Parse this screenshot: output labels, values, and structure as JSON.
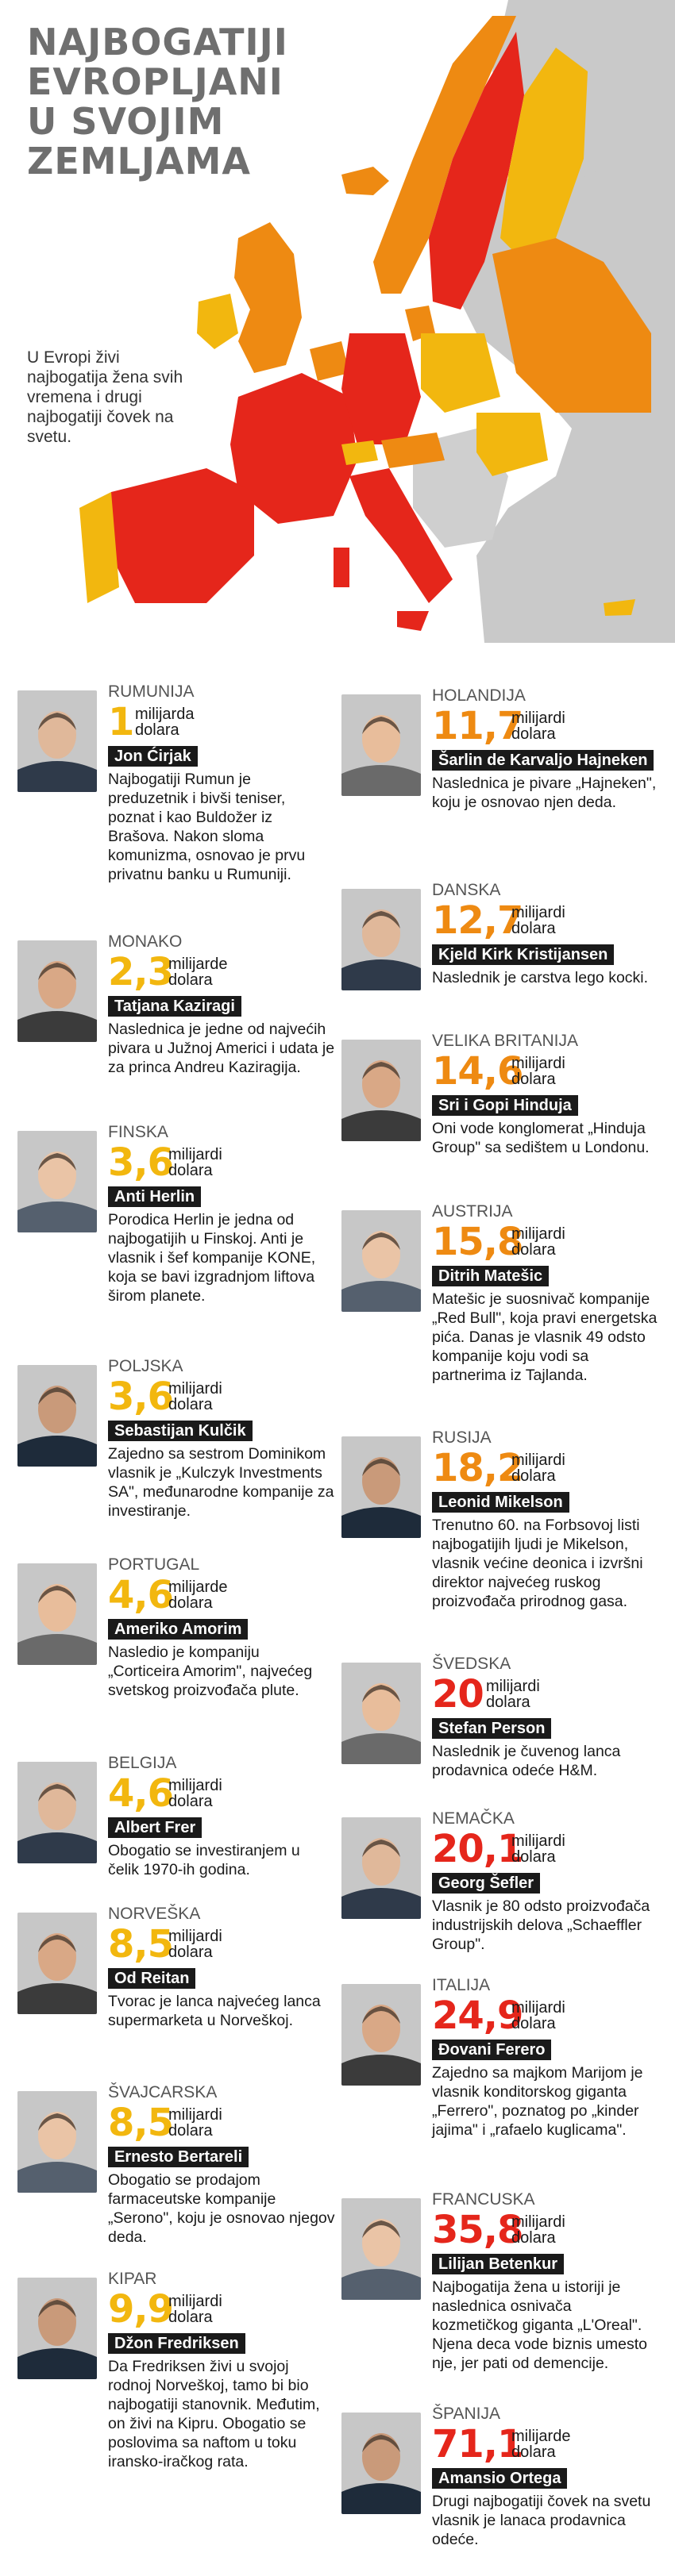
{
  "header": {
    "title_lines": [
      "NAJBOGATIJI",
      "EVROPLJANI",
      "U SVOJIM",
      "ZEMLJAMA"
    ],
    "intro": "U Evropi živi najbogatija žena svih vremena i drugi najbogatiji čovek na svetu."
  },
  "colors": {
    "tier_low": "#f2b70f",
    "tier_mid": "#ee8a12",
    "tier_high": "#e5261b",
    "map_gray": "#c9c9c9",
    "text_dark": "#1a1a1a"
  },
  "entries": [
    {
      "country": "RUMUNIJA",
      "amount": "1",
      "unit": "milijarda dolara",
      "name": "Jon Ćirjak",
      "desc": "Najbogatiji Rumun je preduzetnik i bivši teniser, poznat i kao Buldožer iz Brašova. Nakon sloma komunizma, osnovao je prvu privatnu banku u Rumuniji.",
      "tier": "gold"
    },
    {
      "country": "MONAKO",
      "amount": "2,3",
      "unit": "milijarde dolara",
      "name": "Tatjana Kaziragi",
      "desc": "Naslednica je jedne od najvećih pivara u Južnoj Americi i udata je za princa Andreu Kaziragija.",
      "tier": "gold"
    },
    {
      "country": "FINSKA",
      "amount": "3,6",
      "unit": "milijardi dolara",
      "name": "Anti Herlin",
      "desc": "Porodica Herlin je jedna od najbogatijih u Finskoj. Anti je vlasnik i šef kompanije KONE, koja se bavi izgradnjom liftova širom planete.",
      "tier": "gold"
    },
    {
      "country": "POLJSKA",
      "amount": "3,6",
      "unit": "milijardi dolara",
      "name": "Sebastijan Kulčik",
      "desc": "Zajedno sa sestrom Dominikom vlasnik je „Kulczyk Investments SA\", međunarodne kompanije za investiranje.",
      "tier": "gold"
    },
    {
      "country": "PORTUGAL",
      "amount": "4,6",
      "unit": "milijarde dolara",
      "name": "Ameriko Amorim",
      "desc": "Nasledio je kompaniju „Corticeira Amorim\", najvećeg svetskog proizvođača plute.",
      "tier": "gold"
    },
    {
      "country": "BELGIJA",
      "amount": "4,6",
      "unit": "milijardi dolara",
      "name": "Albert Frer",
      "desc": "Obogatio se investiranjem u čelik 1970-ih godina.",
      "tier": "gold"
    },
    {
      "country": "NORVEŠKA",
      "amount": "8,5",
      "unit": "milijardi dolara",
      "name": "Od Reitan",
      "desc": "Tvorac je lanca najvećeg lanca supermarketa u Norveškoj.",
      "tier": "gold"
    },
    {
      "country": "ŠVAJCARSKA",
      "amount": "8,5",
      "unit": "milijardi dolara",
      "name": "Ernesto Bertareli",
      "desc": "Obogatio se prodajom farmaceutske kompanije „Serono\", koju je osnovao njegov deda.",
      "tier": "gold"
    },
    {
      "country": "KIPAR",
      "amount": "9,9",
      "unit": "milijardi dolara",
      "name": "Džon Fredriksen",
      "desc": "Da Fredriksen živi u svojoj rodnoj Norveškoj, tamo bi bio najbogatiji stanovnik. Međutim, on živi na Kipru. Obogatio se poslovima sa naftom u toku iransko-iračkog rata.",
      "tier": "gold"
    },
    {
      "country": "HOLANDIJA",
      "amount": "11,7",
      "unit": "milijardi dolara",
      "name": "Šarlin de Karvaljo Hajneken",
      "desc": "Naslednica je pivare „Hajneken\", koju je osnovao njen deda.",
      "tier": "orange"
    },
    {
      "country": "DANSKA",
      "amount": "12,7",
      "unit": "milijardi dolara",
      "name": "Kjeld Kirk Kristijansen",
      "desc": "Naslednik je carstva lego kocki.",
      "tier": "orange"
    },
    {
      "country": "VELIKA BRITANIJA",
      "amount": "14,6",
      "unit": "milijardi dolara",
      "name": "Sri i Gopi Hinduja",
      "desc": "Oni vode konglomerat „Hinduja Group\" sa sedištem u Londonu.",
      "tier": "orange"
    },
    {
      "country": "AUSTRIJA",
      "amount": "15,8",
      "unit": "milijardi dolara",
      "name": "Ditrih Matešic",
      "desc": "Matešic je suosnivač kompanije „Red Bull\", koja pravi energetska pića. Danas je vlasnik 49 odsto kompanije koju vodi sa partnerima iz Tajlanda.",
      "tier": "orange"
    },
    {
      "country": "RUSIJA",
      "amount": "18,2",
      "unit": "milijardi dolara",
      "name": "Leonid Mikelson",
      "desc": "Trenutno 60. na Forbsovoj listi najbogatijih ljudi je Mikelson, vlasnik većine deonica i izvršni direktor najvećeg ruskog proizvođača prirodnog gasa.",
      "tier": "orange"
    },
    {
      "country": "ŠVEDSKA",
      "amount": "20",
      "unit": "milijardi dolara",
      "name": "Stefan Person",
      "desc": "Naslednik je čuvenog lanca prodavnica odeće H&M.",
      "tier": "red"
    },
    {
      "country": "NEMAČKA",
      "amount": "20,1",
      "unit": "milijardi dolara",
      "name": "Georg Šefler",
      "desc": "Vlasnik je 80 odsto proizvođača industrijskih delova „Schaeffler Group\".",
      "tier": "red"
    },
    {
      "country": "ITALIJA",
      "amount": "24,9",
      "unit": "milijardi dolara",
      "name": "Đovani Ferero",
      "desc": "Zajedno sa majkom Marijom je vlasnik konditorskog giganta „Ferrero\", poznatog po „kinder jajima\" i „rafaelo kuglicama\".",
      "tier": "red"
    },
    {
      "country": "FRANCUSKA",
      "amount": "35,8",
      "unit": "milijardi dolara",
      "name": "Lilijan Betenkur",
      "desc": "Najbogatija žena u istoriji je naslednica osnivača kozmetičkog giganta „L'Oreal\". Njena deca vode biznis umesto nje, jer pati od demencije.",
      "tier": "red"
    },
    {
      "country": "ŠPANIJA",
      "amount": "71,1",
      "unit": "milijarde dolara",
      "name": "Amansio Ortega",
      "desc": "Drugi najbogatiji čovek na svetu vlasnik je lanaca prodavnica odeće.",
      "tier": "red"
    }
  ]
}
